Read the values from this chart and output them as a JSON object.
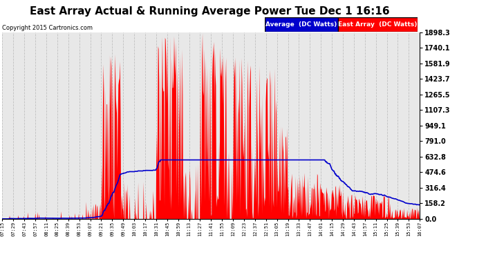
{
  "title": "East Array Actual & Running Average Power Tue Dec 1 16:16",
  "copyright": "Copyright 2015 Cartronics.com",
  "ylabel_right": [
    "1898.3",
    "1740.1",
    "1581.9",
    "1423.7",
    "1265.5",
    "1107.3",
    "949.1",
    "791.0",
    "632.8",
    "474.6",
    "316.4",
    "158.2",
    "0.0"
  ],
  "ymax": 1898.3,
  "ymin": 0.0,
  "bg_color": "#ffffff",
  "plot_bg": "#e8e8e8",
  "grid_color": "#bbbbbb",
  "area_color": "#ff0000",
  "avg_color": "#0000cc",
  "title_fontsize": 11,
  "legend_avg_label": "Average  (DC Watts)",
  "legend_east_label": "East Array  (DC Watts)",
  "xtick_labels": [
    "07:15",
    "07:29",
    "07:43",
    "07:57",
    "08:11",
    "08:25",
    "08:39",
    "08:53",
    "09:07",
    "09:21",
    "09:35",
    "09:49",
    "10:03",
    "10:17",
    "10:31",
    "10:45",
    "10:59",
    "11:13",
    "11:27",
    "11:41",
    "11:55",
    "12:09",
    "12:23",
    "12:37",
    "12:51",
    "13:05",
    "13:19",
    "13:33",
    "13:47",
    "14:01",
    "14:15",
    "14:29",
    "14:43",
    "14:57",
    "15:11",
    "15:25",
    "15:39",
    "15:53",
    "16:07"
  ]
}
